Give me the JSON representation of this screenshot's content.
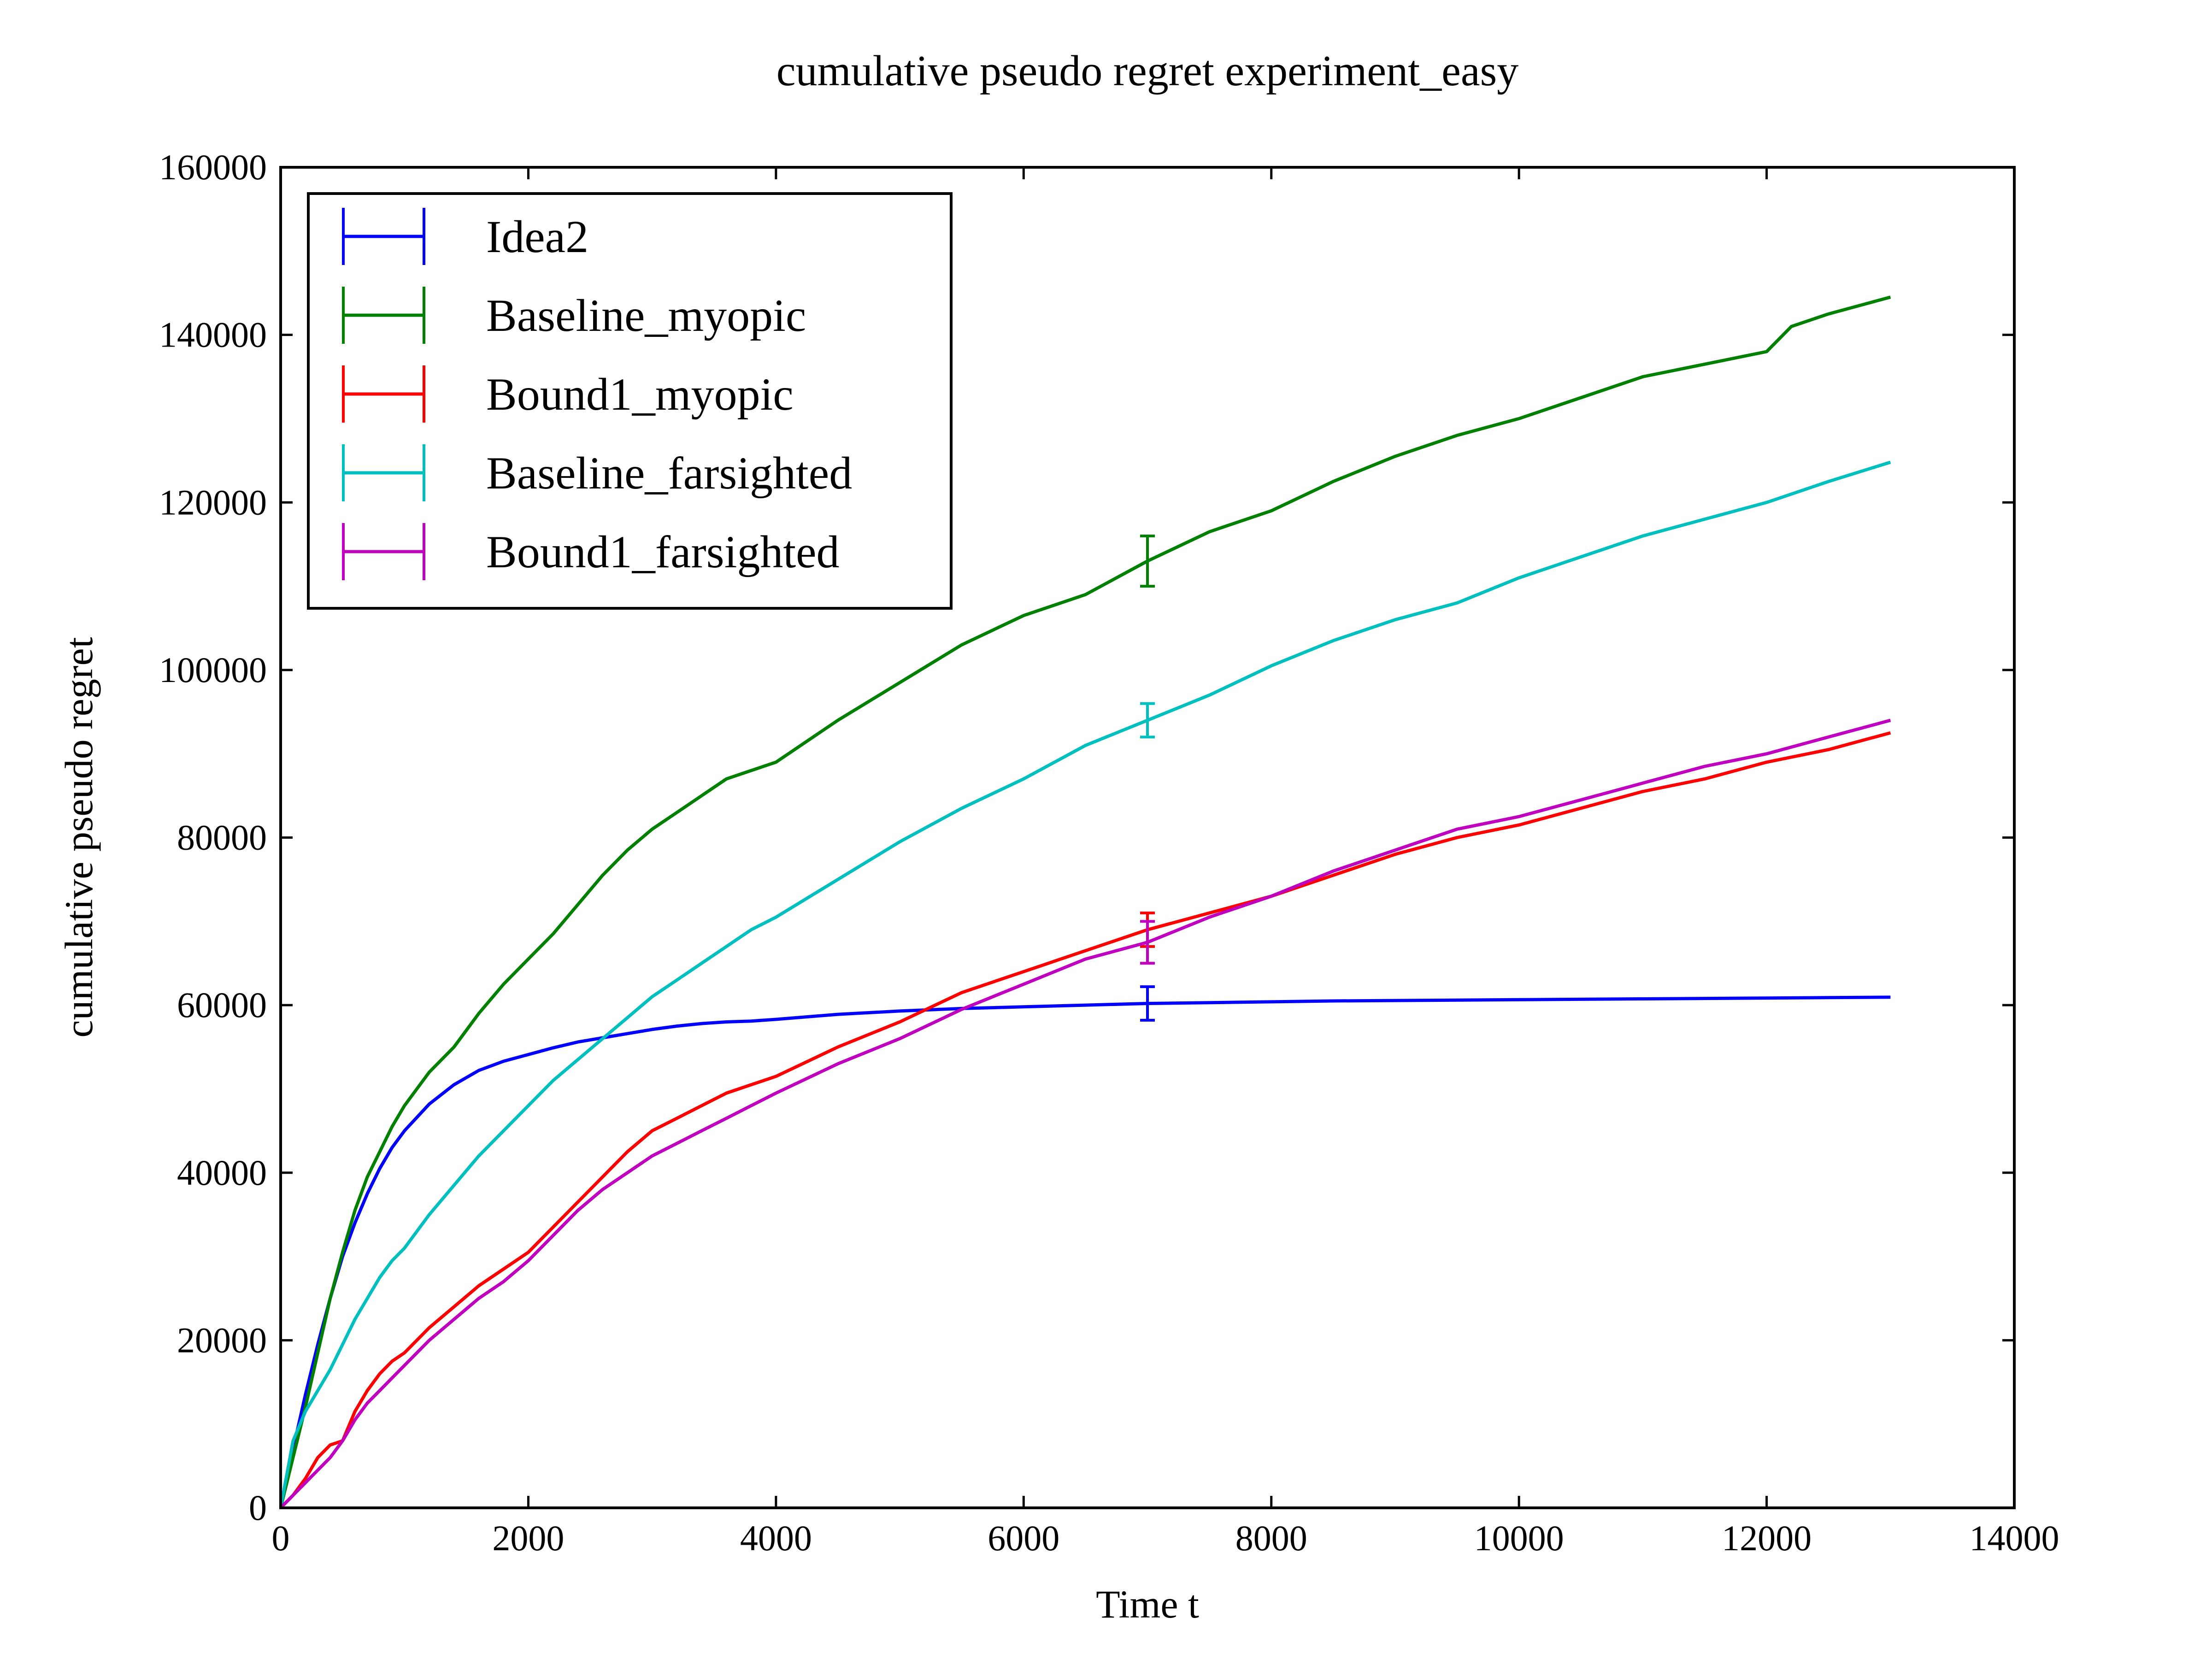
{
  "chart_data": {
    "type": "line",
    "title": "cumulative pseudo regret experiment_easy",
    "xlabel": "Time t",
    "ylabel": "cumulative pseudo regret",
    "xlim": [
      0,
      14000
    ],
    "ylim": [
      0,
      160000
    ],
    "xticks": [
      0,
      2000,
      4000,
      6000,
      8000,
      10000,
      12000,
      14000
    ],
    "yticks": [
      0,
      20000,
      40000,
      60000,
      80000,
      100000,
      120000,
      140000,
      160000
    ],
    "grid": false,
    "legend_position": "upper-left",
    "series": [
      {
        "name": "Idea2",
        "color": "#0000ff",
        "x": [
          0,
          100,
          200,
          300,
          400,
          500,
          600,
          700,
          800,
          900,
          1000,
          1200,
          1400,
          1600,
          1800,
          2000,
          2200,
          2400,
          2600,
          2800,
          3000,
          3200,
          3400,
          3600,
          3800,
          4000,
          4500,
          5000,
          5500,
          6000,
          6500,
          7000,
          7500,
          8000,
          8500,
          9000,
          9500,
          10000,
          10500,
          11000,
          11500,
          12000,
          12500,
          13000
        ],
        "y": [
          0,
          7000,
          13500,
          19500,
          25000,
          30000,
          34000,
          37500,
          40500,
          43000,
          45000,
          48200,
          50500,
          52200,
          53300,
          54100,
          54900,
          55600,
          56100,
          56600,
          57100,
          57500,
          57800,
          58000,
          58100,
          58300,
          58900,
          59300,
          59600,
          59800,
          60000,
          60200,
          60300,
          60400,
          60500,
          60550,
          60600,
          60650,
          60700,
          60750,
          60800,
          60850,
          60900,
          60950
        ],
        "error_bar": {
          "x": 7000,
          "y": 60200,
          "err": 2000
        }
      },
      {
        "name": "Baseline_myopic",
        "color": "#008000",
        "x": [
          0,
          100,
          200,
          300,
          400,
          500,
          600,
          700,
          800,
          900,
          1000,
          1200,
          1400,
          1600,
          1800,
          2000,
          2200,
          2400,
          2600,
          2800,
          3000,
          3200,
          3400,
          3600,
          3800,
          4000,
          4500,
          5000,
          5500,
          6000,
          6500,
          7000,
          7500,
          8000,
          8500,
          9000,
          9500,
          10000,
          10500,
          11000,
          11500,
          12000,
          12200,
          12500,
          13000
        ],
        "y": [
          0,
          6000,
          12000,
          18500,
          25000,
          30500,
          35500,
          39500,
          42500,
          45500,
          48000,
          52000,
          55000,
          59000,
          62500,
          65500,
          68500,
          72000,
          75500,
          78500,
          81000,
          83000,
          85000,
          87000,
          88000,
          89000,
          94000,
          98500,
          103000,
          106500,
          109000,
          113000,
          116500,
          119000,
          122500,
          125500,
          128000,
          130000,
          132500,
          135000,
          136500,
          138000,
          141000,
          142500,
          144500
        ],
        "error_bar": {
          "x": 7000,
          "y": 113000,
          "err": 3000
        }
      },
      {
        "name": "Bound1_myopic",
        "color": "#ff0000",
        "x": [
          0,
          100,
          200,
          300,
          400,
          500,
          600,
          700,
          800,
          900,
          1000,
          1200,
          1400,
          1600,
          1800,
          2000,
          2200,
          2400,
          2600,
          2800,
          3000,
          3200,
          3400,
          3600,
          3800,
          4000,
          4500,
          5000,
          5500,
          6000,
          6500,
          7000,
          7500,
          8000,
          8500,
          9000,
          9500,
          10000,
          10500,
          11000,
          11500,
          12000,
          12500,
          13000
        ],
        "y": [
          0,
          1500,
          3500,
          6000,
          7500,
          8000,
          11500,
          14000,
          16000,
          17500,
          18500,
          21500,
          24000,
          26500,
          28500,
          30500,
          33500,
          36500,
          39500,
          42500,
          45000,
          46500,
          48000,
          49500,
          50500,
          51500,
          55000,
          58000,
          61500,
          64000,
          66500,
          69000,
          71000,
          73000,
          75500,
          78000,
          80000,
          81500,
          83500,
          85500,
          87000,
          89000,
          90500,
          92500
        ],
        "error_bar": {
          "x": 7000,
          "y": 69000,
          "err": 2000
        }
      },
      {
        "name": "Baseline_farsighted",
        "color": "#00bfbf",
        "x": [
          0,
          100,
          200,
          300,
          400,
          500,
          600,
          700,
          800,
          900,
          1000,
          1200,
          1400,
          1600,
          1800,
          2000,
          2200,
          2400,
          2600,
          2800,
          3000,
          3200,
          3400,
          3600,
          3800,
          4000,
          4500,
          5000,
          5500,
          6000,
          6500,
          7000,
          7500,
          8000,
          8500,
          9000,
          9500,
          10000,
          10500,
          11000,
          11500,
          12000,
          12500,
          13000
        ],
        "y": [
          0,
          8000,
          11500,
          14000,
          16500,
          19500,
          22500,
          25000,
          27500,
          29500,
          31000,
          35000,
          38500,
          42000,
          45000,
          48000,
          51000,
          53500,
          56000,
          58500,
          61000,
          63000,
          65000,
          67000,
          69000,
          70500,
          75000,
          79500,
          83500,
          87000,
          91000,
          94000,
          97000,
          100500,
          103500,
          106000,
          108000,
          111000,
          113500,
          116000,
          118000,
          120000,
          122500,
          124800
        ],
        "error_bar": {
          "x": 7000,
          "y": 94000,
          "err": 2000
        }
      },
      {
        "name": "Bound1_farsighted",
        "color": "#bf00bf",
        "x": [
          0,
          100,
          200,
          300,
          400,
          500,
          600,
          700,
          800,
          900,
          1000,
          1200,
          1400,
          1600,
          1800,
          2000,
          2200,
          2400,
          2600,
          2800,
          3000,
          3200,
          3400,
          3600,
          3800,
          4000,
          4500,
          5000,
          5500,
          6000,
          6500,
          7000,
          7500,
          8000,
          8500,
          9000,
          9500,
          10000,
          10500,
          11000,
          11500,
          12000,
          12500,
          13000
        ],
        "y": [
          0,
          1500,
          3000,
          4500,
          6000,
          8000,
          10500,
          12500,
          14000,
          15500,
          17000,
          20000,
          22500,
          25000,
          27000,
          29500,
          32500,
          35500,
          38000,
          40000,
          42000,
          43500,
          45000,
          46500,
          48000,
          49500,
          53000,
          56000,
          59500,
          62500,
          65500,
          67500,
          70500,
          73000,
          76000,
          78500,
          81000,
          82500,
          84500,
          86500,
          88500,
          90000,
          92000,
          94000
        ],
        "error_bar": {
          "x": 7000,
          "y": 67500,
          "err": 2500
        }
      }
    ]
  }
}
